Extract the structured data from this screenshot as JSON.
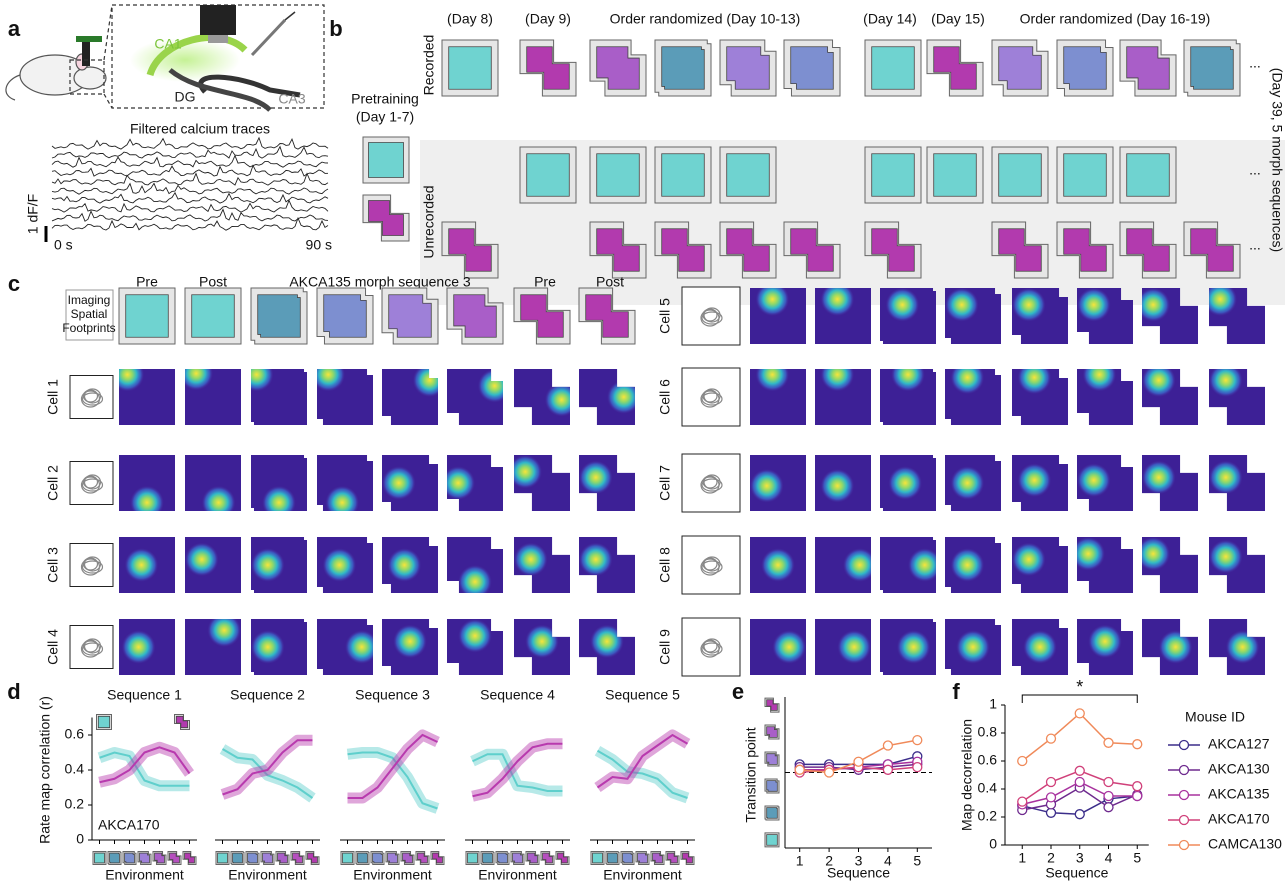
{
  "environment_colors": [
    "#6fd3d0",
    "#5b9cb8",
    "#7d8fd0",
    "#9e80d8",
    "#a95ec8",
    "#b54fbe",
    "#b23aae"
  ],
  "panel_a": {
    "label": "a",
    "regions": [
      "CA1",
      "DG",
      "CA3"
    ],
    "traces_title": "Filtered calcium traces",
    "scale_label": "1 dF/F",
    "time_start": "0 s",
    "time_end": "90 s"
  },
  "panel_b": {
    "label": "b",
    "pretraining": [
      "Pretraining",
      "(Day 1-7)"
    ],
    "headers": [
      "(Day 8)",
      "(Day 9)",
      "Order randomized (Day 10-13)",
      "(Day 14)",
      "(Day 15)",
      "Order randomized (Day 16-19)"
    ],
    "rows": [
      "Recorded",
      "Unrecorded"
    ],
    "ellipsis": "...",
    "side_note": "(Day 39, 5 morph sequences)"
  },
  "panel_c": {
    "label": "c",
    "headers": [
      "Pre",
      "Post",
      "AKCA135 morph sequence 3",
      "Pre",
      "Post"
    ],
    "footprints_label": [
      "Imaging",
      "Spatial",
      "Footprints"
    ],
    "cells": [
      "Cell 1",
      "Cell 2",
      "Cell 3",
      "Cell 4",
      "Cell 5",
      "Cell 6",
      "Cell 7",
      "Cell 8",
      "Cell 9"
    ]
  },
  "chart_data": [
    {
      "type": "line",
      "panel_label": "d",
      "title": "Sequence 1",
      "x_label": "Environment",
      "y_label": "Rate map correlation (r)",
      "annotation": "AKCA170",
      "categories": [
        null,
        null,
        null,
        null,
        null,
        null,
        null
      ],
      "ylim": [
        0,
        0.7
      ],
      "yticks": [
        0,
        0.2,
        0.4,
        0.6
      ],
      "series": [
        {
          "color": "#5fcfcc",
          "values": [
            0.47,
            0.5,
            0.48,
            0.34,
            0.31,
            0.31,
            0.31
          ]
        },
        {
          "color": "#b83aae",
          "values": [
            0.33,
            0.35,
            0.4,
            0.5,
            0.53,
            0.5,
            0.38
          ]
        }
      ]
    },
    {
      "type": "line",
      "title": "Sequence 2",
      "x_label": "Environment",
      "categories": [
        null,
        null,
        null,
        null,
        null,
        null,
        null
      ],
      "ylim": [
        0,
        0.7
      ],
      "series": [
        {
          "color": "#5fcfcc",
          "values": [
            0.52,
            0.47,
            0.46,
            0.37,
            0.34,
            0.3,
            0.24
          ]
        },
        {
          "color": "#b83aae",
          "values": [
            0.26,
            0.29,
            0.38,
            0.4,
            0.5,
            0.57,
            0.57
          ]
        }
      ]
    },
    {
      "type": "line",
      "title": "Sequence 3",
      "x_label": "Environment",
      "categories": [
        null,
        null,
        null,
        null,
        null,
        null,
        null
      ],
      "ylim": [
        0,
        0.7
      ],
      "series": [
        {
          "color": "#5fcfcc",
          "values": [
            0.49,
            0.5,
            0.5,
            0.47,
            0.36,
            0.21,
            0.18
          ]
        },
        {
          "color": "#b83aae",
          "values": [
            0.24,
            0.24,
            0.3,
            0.41,
            0.52,
            0.6,
            0.56
          ]
        }
      ]
    },
    {
      "type": "line",
      "title": "Sequence 4",
      "x_label": "Environment",
      "categories": [
        null,
        null,
        null,
        null,
        null,
        null,
        null
      ],
      "ylim": [
        0,
        0.7
      ],
      "series": [
        {
          "color": "#5fcfcc",
          "values": [
            0.45,
            0.49,
            0.49,
            0.31,
            0.3,
            0.28,
            0.28
          ]
        },
        {
          "color": "#b83aae",
          "values": [
            0.25,
            0.27,
            0.35,
            0.45,
            0.53,
            0.55,
            0.55
          ]
        }
      ]
    },
    {
      "type": "line",
      "title": "Sequence 5",
      "x_label": "Environment",
      "categories": [
        null,
        null,
        null,
        null,
        null,
        null,
        null
      ],
      "ylim": [
        0,
        0.7
      ],
      "series": [
        {
          "color": "#5fcfcc",
          "values": [
            0.51,
            0.46,
            0.39,
            0.38,
            0.35,
            0.27,
            0.24
          ]
        },
        {
          "color": "#b83aae",
          "values": [
            0.3,
            0.36,
            0.35,
            0.48,
            0.54,
            0.6,
            0.55
          ]
        }
      ]
    },
    {
      "type": "line",
      "panel_label": "e",
      "y_label": "Transition point",
      "x_label": "Sequence",
      "x": [
        1,
        2,
        3,
        4,
        5
      ],
      "xticks": [
        1,
        2,
        3,
        4,
        5
      ],
      "xlim": [
        0.5,
        5.5
      ],
      "ylim": [
        0.7,
        6.3
      ],
      "reference_line": 3.5,
      "series": [
        {
          "color": "#3b2d8a",
          "values": [
            3.8,
            3.8,
            3.8,
            3.8,
            4.1
          ]
        },
        {
          "color": "#6e2a8e",
          "values": [
            3.7,
            3.7,
            3.6,
            3.7,
            3.8
          ]
        },
        {
          "color": "#a8329e",
          "values": [
            3.6,
            3.6,
            3.7,
            3.8,
            3.9
          ]
        },
        {
          "color": "#d0407a",
          "values": [
            3.5,
            3.6,
            3.7,
            3.6,
            3.7
          ]
        },
        {
          "color": "#f08a5a",
          "values": [
            3.6,
            3.5,
            3.9,
            4.5,
            4.7
          ]
        }
      ]
    },
    {
      "type": "line",
      "panel_label": "f",
      "y_label": "Map decorrelation",
      "x_label": "Sequence",
      "x": [
        1,
        2,
        3,
        4,
        5
      ],
      "xticks": [
        1,
        2,
        3,
        4,
        5
      ],
      "xlim": [
        0.4,
        5.4
      ],
      "ylim": [
        0,
        1
      ],
      "yticks": [
        0,
        0.2,
        0.4,
        0.6,
        0.8,
        1
      ],
      "significance": "*",
      "legend_title": "Mouse ID",
      "legend": "right",
      "series": [
        {
          "name": "AKCA127",
          "color": "#3b2d8a",
          "values": [
            0.28,
            0.23,
            0.22,
            0.33,
            0.35
          ]
        },
        {
          "name": "AKCA130",
          "color": "#6e2a8e",
          "values": [
            0.25,
            0.29,
            0.41,
            0.27,
            0.36
          ]
        },
        {
          "name": "AKCA135",
          "color": "#a8329e",
          "values": [
            0.29,
            0.34,
            0.45,
            0.35,
            0.35
          ]
        },
        {
          "name": "AKCA170",
          "color": "#d0407a",
          "values": [
            0.31,
            0.45,
            0.53,
            0.45,
            0.42
          ]
        },
        {
          "name": "CAMCA130",
          "color": "#f08a5a",
          "values": [
            0.6,
            0.76,
            0.94,
            0.73,
            0.72
          ]
        }
      ]
    }
  ]
}
